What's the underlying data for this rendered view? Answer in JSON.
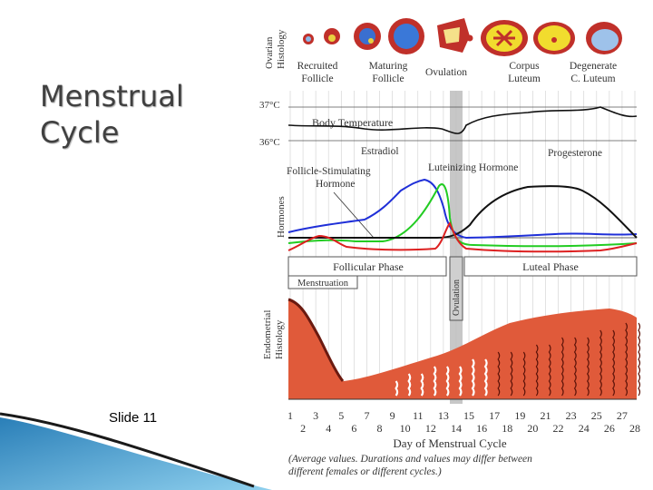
{
  "slide": {
    "title_lines": [
      "Menstrual",
      "Cycle"
    ],
    "slide_number": "Slide 11"
  },
  "figure": {
    "ovarian": {
      "axis_label": [
        "Ovarian",
        "Histology"
      ],
      "stages": [
        {
          "line1": "Recruited",
          "line2": "Follicle"
        },
        {
          "line1": "Maturing",
          "line2": "Follicle"
        },
        {
          "line1": "Ovulation",
          "line2": ""
        },
        {
          "line1": "Corpus",
          "line2": "Luteum"
        },
        {
          "line1": "Degenerate",
          "line2": "C. Luteum"
        }
      ]
    },
    "temperature": {
      "label": "Body Temperature",
      "ticks": [
        "37°C",
        "36°C"
      ]
    },
    "hormones": {
      "axis_label": "Hormones",
      "labels": {
        "estradiol": "Estradiol",
        "lh": "Luteinizing  Hormone",
        "progesterone": "Progesterone",
        "fsh_line1": "Follicle-Stimulating",
        "fsh_line2": "Hormone"
      }
    },
    "phases": {
      "follicular": "Follicular Phase",
      "luteal": "Luteal Phase",
      "menstruation": "Menstruation",
      "ovulation": "Ovulation"
    },
    "endometrial": {
      "axis_label": [
        "Endometrial",
        "Histology"
      ]
    },
    "x_axis": {
      "odd_days": [
        "1",
        "3",
        "5",
        "7",
        "9",
        "11",
        "13",
        "15",
        "17",
        "19",
        "21",
        "23",
        "25",
        "27"
      ],
      "even_days": [
        "2",
        "4",
        "6",
        "8",
        "10",
        "12",
        "14",
        "16",
        "18",
        "20",
        "22",
        "24",
        "26",
        "28"
      ],
      "label": "Day of Menstrual Cycle",
      "note_line1": "(Average values. Durations and values may differ between",
      "note_line2": "different females or different cycles.)"
    },
    "colors": {
      "estradiol": "#1f2fd8",
      "lh": "#22cc22",
      "progesterone": "#111111",
      "fsh": "#dd2020",
      "endometrium": "#e05a3a",
      "ovulation_band": "#bdbdbd"
    }
  }
}
